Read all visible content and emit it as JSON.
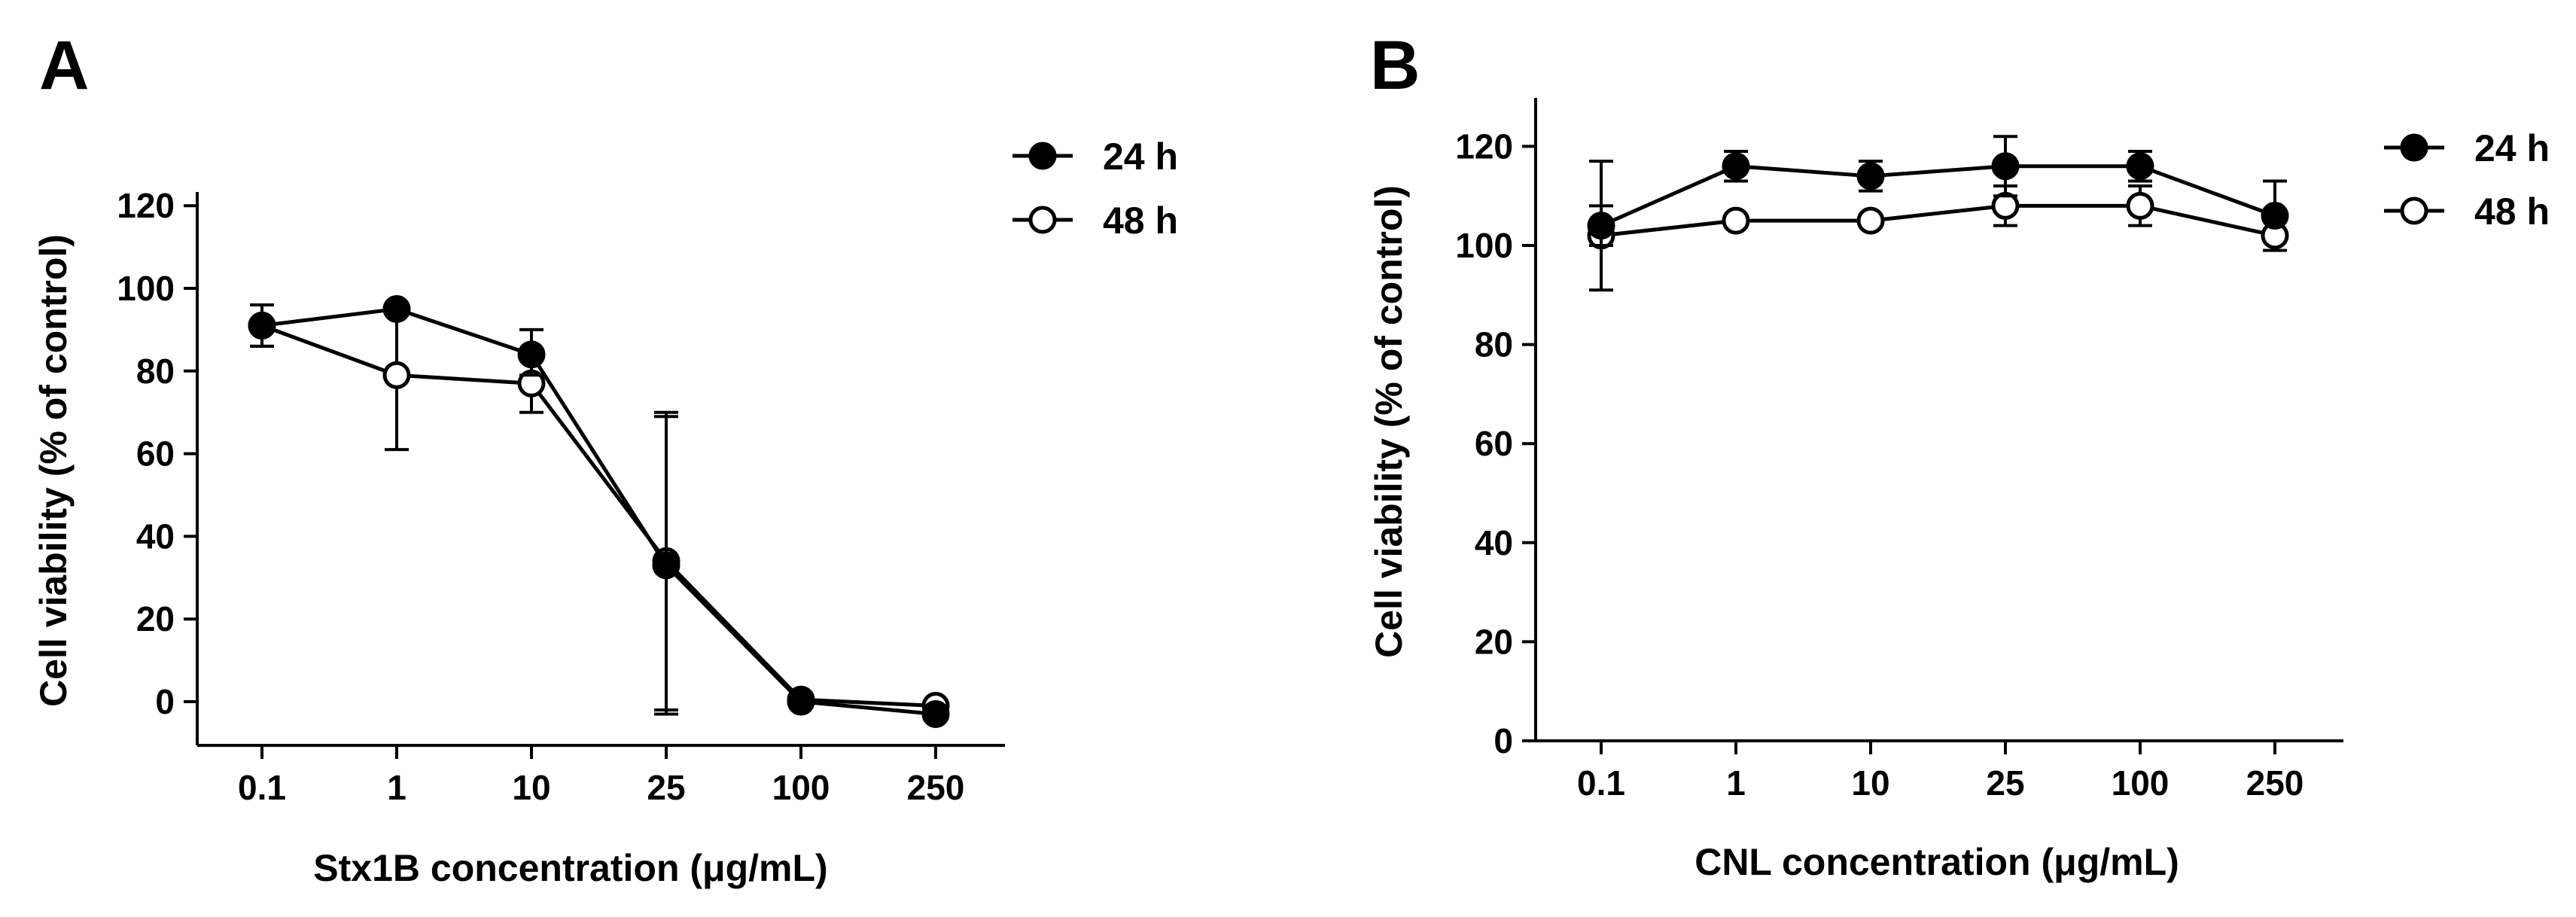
{
  "chart_data": [
    {
      "panel_label": "A",
      "type": "line",
      "categories": [
        "0.1",
        "1",
        "10",
        "25",
        "100",
        "250"
      ],
      "xlabel": "Stx1B concentration (μg/mL)",
      "ylabel": "Cell viability (% of control)",
      "ylim": [
        -10,
        120
      ],
      "yticks": [
        0,
        20,
        40,
        60,
        80,
        100,
        120
      ],
      "ytick_labels": [
        "0",
        "20",
        "40",
        "60",
        "80",
        "100",
        "120"
      ],
      "legend_position": "top-right",
      "series": [
        {
          "name": "24 h",
          "marker": "filled-circle",
          "values": [
            91,
            95,
            84,
            33,
            0,
            -3
          ],
          "error_low": [
            86,
            null,
            79,
            -3,
            null,
            null
          ],
          "error_high": [
            96,
            null,
            90,
            70,
            null,
            null
          ]
        },
        {
          "name": "48 h",
          "marker": "open-circle",
          "values": [
            91,
            79,
            77,
            34,
            0.5,
            -1
          ],
          "error_low": [
            86,
            61,
            70,
            -2,
            null,
            null
          ],
          "error_high": [
            96,
            95,
            84,
            69,
            null,
            null
          ]
        }
      ]
    },
    {
      "panel_label": "B",
      "type": "line",
      "categories": [
        "0.1",
        "1",
        "10",
        "25",
        "100",
        "250"
      ],
      "xlabel": "CNL concentration (μg/mL)",
      "ylabel": "Cell viability (% of control)",
      "ylim": [
        0,
        130
      ],
      "yticks": [
        0,
        20,
        40,
        60,
        80,
        100,
        120
      ],
      "ytick_labels": [
        "0",
        "20",
        "40",
        "60",
        "80",
        "100",
        "120"
      ],
      "legend_position": "top-right",
      "series": [
        {
          "name": "24 h",
          "marker": "filled-circle",
          "values": [
            104,
            116,
            114,
            116,
            116,
            106
          ],
          "error_low": [
            100,
            113,
            111,
            110,
            113,
            null
          ],
          "error_high": [
            108,
            119,
            117,
            122,
            119,
            null
          ]
        },
        {
          "name": "48 h",
          "marker": "open-circle",
          "values": [
            102,
            105,
            105,
            108,
            108,
            102
          ],
          "error_low": [
            91,
            null,
            null,
            104,
            104,
            99
          ],
          "error_high": [
            117,
            null,
            null,
            112,
            112,
            113
          ]
        }
      ]
    }
  ]
}
